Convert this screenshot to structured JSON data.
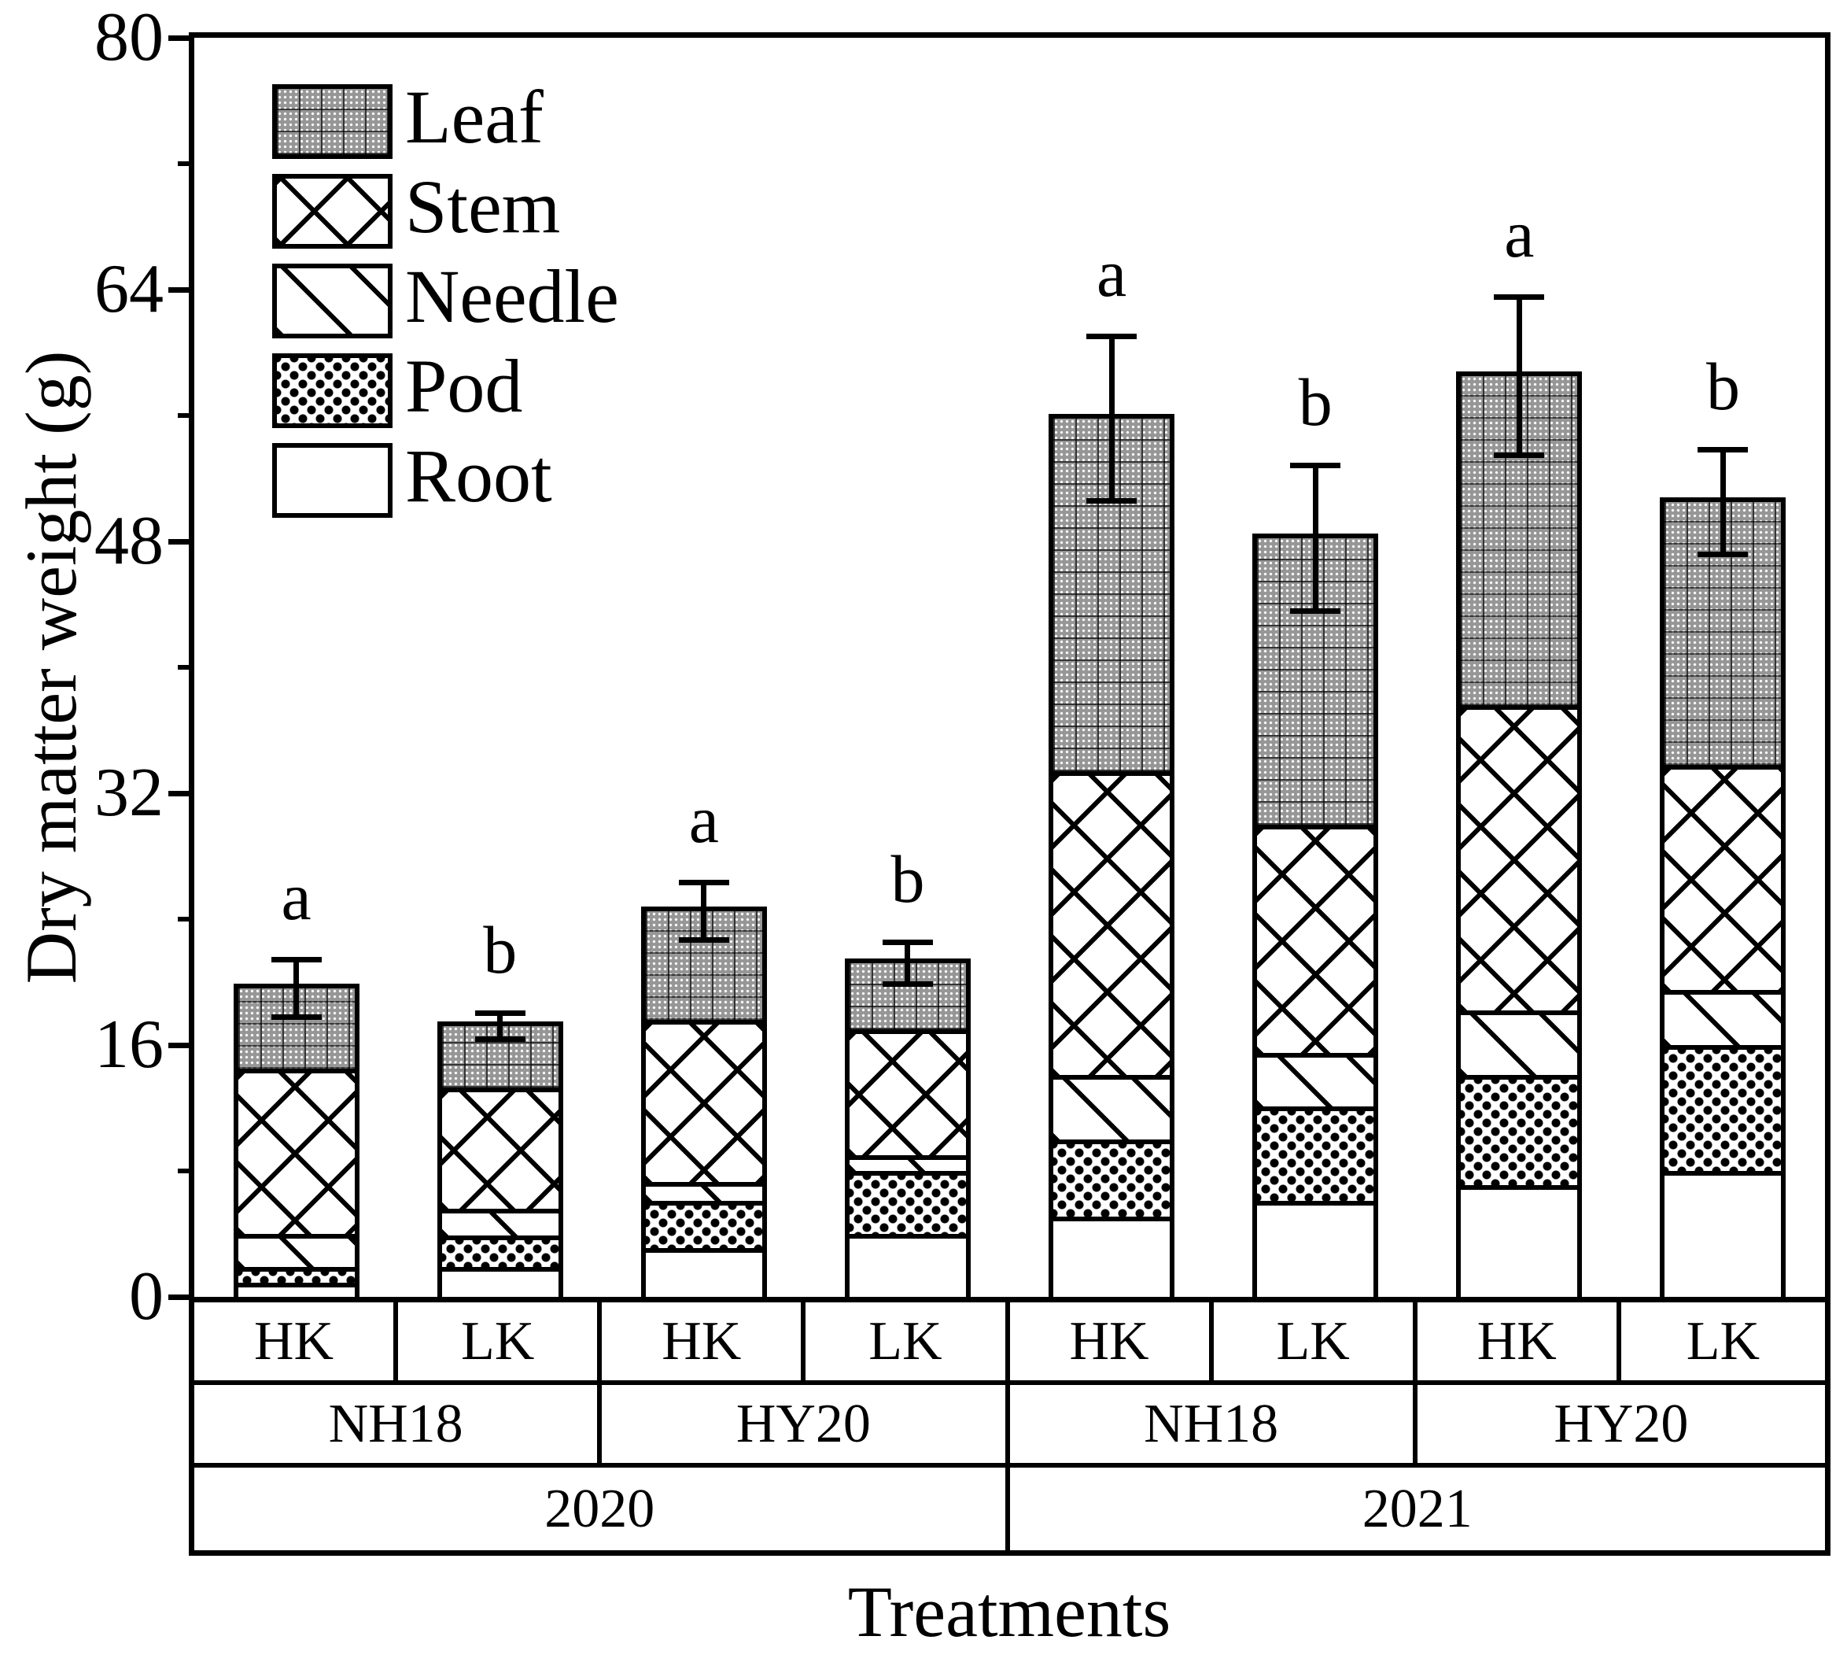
{
  "figure": {
    "background": "#ffffff",
    "ink_color": "#000000",
    "leaf_gray": "#969696",
    "y_axis_label": "Dry matter weight (g)",
    "x_axis_label": "Treatments"
  },
  "chart_data": {
    "type": "bar",
    "stacked": true,
    "title": "",
    "ylabel": "Dry matter weight (g)",
    "xlabel": "Treatments",
    "ylim": [
      0,
      80
    ],
    "yticks_major": [
      0,
      16,
      32,
      48,
      64,
      80
    ],
    "ytick_labels": [
      "0",
      "16",
      "32",
      "48",
      "64",
      "80"
    ],
    "yticks_minor": [
      8,
      24,
      40,
      56,
      72
    ],
    "grid": false,
    "legend_position": "upper-left-inside",
    "legend": [
      {
        "label": "Leaf",
        "pattern": "gray-textured-grid"
      },
      {
        "label": "Stem",
        "pattern": "diagonal-crosshatch"
      },
      {
        "label": "Needle",
        "pattern": "diagonal-lines"
      },
      {
        "label": "Pod",
        "pattern": "black-dot-lattice"
      },
      {
        "label": "Root",
        "pattern": "plain-white"
      }
    ],
    "stack_order_bottom_to_top": [
      "Root",
      "Pod",
      "Needle",
      "Stem",
      "Leaf"
    ],
    "bars": [
      {
        "year": "2020",
        "cultivar": "NH18",
        "treatment": "HK",
        "segments": {
          "Root": 0.9,
          "Pod": 1.0,
          "Needle": 2.1,
          "Stem": 10.5,
          "Leaf": 5.1
        },
        "total": 19.6,
        "error": 2.0,
        "letter": "a"
      },
      {
        "year": "2020",
        "cultivar": "NH18",
        "treatment": "LK",
        "segments": {
          "Root": 1.9,
          "Pod": 2.0,
          "Needle": 1.7,
          "Stem": 7.7,
          "Leaf": 3.9
        },
        "total": 17.2,
        "error": 1.0,
        "letter": "b"
      },
      {
        "year": "2020",
        "cultivar": "HY20",
        "treatment": "HK",
        "segments": {
          "Root": 3.1,
          "Pod": 3.0,
          "Needle": 1.2,
          "Stem": 10.3,
          "Leaf": 6.9
        },
        "total": 24.5,
        "error": 2.0,
        "letter": "a"
      },
      {
        "year": "2020",
        "cultivar": "HY20",
        "treatment": "LK",
        "segments": {
          "Root": 4.0,
          "Pod": 4.0,
          "Needle": 1.0,
          "Stem": 8.0,
          "Leaf": 4.2
        },
        "total": 21.2,
        "error": 1.5,
        "letter": "b"
      },
      {
        "year": "2021",
        "cultivar": "NH18",
        "treatment": "HK",
        "segments": {
          "Root": 5.1,
          "Pod": 4.9,
          "Needle": 4.1,
          "Stem": 19.3,
          "Leaf": 22.4
        },
        "total": 55.8,
        "error": 5.4,
        "letter": "a"
      },
      {
        "year": "2021",
        "cultivar": "NH18",
        "treatment": "LK",
        "segments": {
          "Root": 6.1,
          "Pod": 6.0,
          "Needle": 3.4,
          "Stem": 14.5,
          "Leaf": 18.2
        },
        "total": 48.2,
        "error": 4.8,
        "letter": "b"
      },
      {
        "year": "2021",
        "cultivar": "HY20",
        "treatment": "HK",
        "segments": {
          "Root": 7.1,
          "Pod": 7.0,
          "Needle": 4.1,
          "Stem": 19.4,
          "Leaf": 20.9
        },
        "total": 58.5,
        "error": 5.2,
        "letter": "a"
      },
      {
        "year": "2021",
        "cultivar": "HY20",
        "treatment": "LK",
        "segments": {
          "Root": 8.0,
          "Pod": 8.0,
          "Needle": 3.5,
          "Stem": 14.3,
          "Leaf": 16.7
        },
        "total": 50.5,
        "error": 3.5,
        "letter": "b"
      }
    ],
    "axis_table": {
      "treatment_row": [
        "HK",
        "LK",
        "HK",
        "LK",
        "HK",
        "LK",
        "HK",
        "LK"
      ],
      "cultivar_row": [
        "NH18",
        "HY20",
        "NH18",
        "HY20"
      ],
      "year_row": [
        "2020",
        "2021"
      ]
    }
  }
}
